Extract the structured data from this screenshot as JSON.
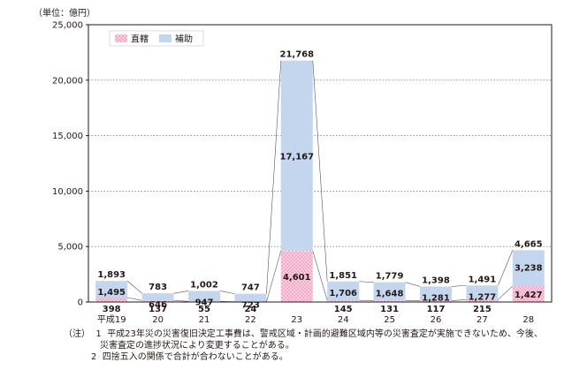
{
  "unit_label": "（単位：億円）",
  "colors": {
    "direct": "#f4a9c8",
    "direct_dot": "#e05a94",
    "subsidy": "#c4d5ee",
    "axis": "#231815",
    "grid": "#555555"
  },
  "chart_data": {
    "type": "bar",
    "stacked": true,
    "categories": [
      "平成19",
      "20",
      "21",
      "22",
      "23",
      "24",
      "25",
      "26",
      "27",
      "28"
    ],
    "series": [
      {
        "name": "直轄",
        "values": [
          398,
          137,
          55,
          24,
          4601,
          145,
          131,
          117,
          215,
          1427
        ]
      },
      {
        "name": "補助",
        "values": [
          1495,
          646,
          947,
          723,
          17167,
          1706,
          1648,
          1281,
          1277,
          3238
        ]
      }
    ],
    "direct_labels": [
      "398",
      "137",
      "55",
      "24",
      "4,601",
      "145",
      "131",
      "117",
      "215",
      "1,427"
    ],
    "subsidy_labels": [
      "1,495",
      "646",
      "947",
      "723",
      "17,167",
      "1,706",
      "1,648",
      "1,281",
      "1,277",
      "3,238"
    ],
    "totals": [
      1893,
      783,
      1002,
      747,
      21768,
      1851,
      1779,
      1398,
      1491,
      4665
    ],
    "total_labels": [
      "1,893",
      "783",
      "1,002",
      "747",
      "21,768",
      "1,851",
      "1,779",
      "1,398",
      "1,491",
      "4,665"
    ],
    "ylim": [
      0,
      25000
    ],
    "yticks": [
      0,
      5000,
      10000,
      15000,
      20000,
      25000
    ],
    "ytick_labels": [
      "0",
      "5,000",
      "10,000",
      "15,000",
      "20,000",
      "25,000"
    ],
    "legend": {
      "placement": "top-left",
      "direct": "直轄",
      "subsidy": "補助"
    },
    "grid": true
  },
  "notes": {
    "label": "（注）",
    "n1_num": "1",
    "n1_text": "平成23年災の災害復旧決定工事費は、警戒区域・計画的避難区域内等の災害査定が実施できないため、今後、",
    "n1_cont": "災害査定の進捗状況により変更することがある。",
    "n2_num": "2",
    "n2_text": "四捨五入の関係で合計が合わないことがある。"
  }
}
